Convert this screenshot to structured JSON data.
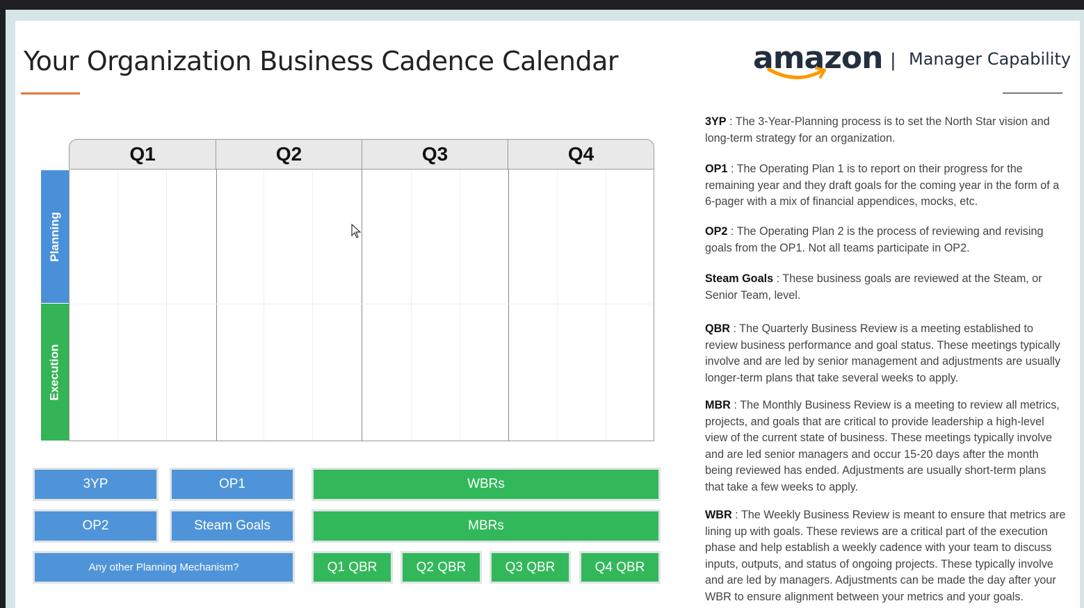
{
  "title": "Your Organization Business Cadence Calendar",
  "brand": {
    "logo_text": "amazon",
    "separator": "|",
    "tagline": "Manager Capability"
  },
  "calendar": {
    "quarters": [
      "Q1",
      "Q2",
      "Q3",
      "Q4"
    ],
    "rows": [
      "Planning",
      "Execution"
    ]
  },
  "legend_buttons": {
    "b3yp": "3YP",
    "op1": "OP1",
    "op2": "OP2",
    "steam": "Steam Goals",
    "other": "Any other Planning Mechanism?",
    "wbrs": "WBRs",
    "mbrs": "MBRs",
    "q1": "Q1 QBR",
    "q2": "Q2 QBR",
    "q3": "Q3 QBR",
    "q4": "Q4 QBR"
  },
  "definitions": [
    {
      "term": "3YP",
      "text": " : The 3-Year-Planning process is to set the North Star vision and long-term strategy for an organization."
    },
    {
      "term": "OP1",
      "text": " : The Operating Plan 1 is to report on their progress for the remaining year and they draft goals for the coming year in the form of a 6-pager with a mix of financial appendices, mocks, etc."
    },
    {
      "term": "OP2",
      "text": " : The Operating Plan 2 is the process of reviewing and revising goals from the OP1. Not all teams participate in OP2."
    },
    {
      "term": "Steam Goals",
      "text": " : These business goals are reviewed at the Steam, or Senior Team, level."
    },
    {
      "term": "QBR",
      "text": " : The Quarterly Business Review is a meeting established to review business performance and goal status. These meetings typically involve and are led by senior management and adjustments are usually longer-term plans that take several weeks to apply."
    },
    {
      "term": "MBR",
      "text": " : The Monthly Business Review is a meeting to review all metrics, projects, and goals that are critical to provide leadership a high-level view of the current state of business. These meetings typically involve and are led senior managers and occur 15-20 days after the month being reviewed has ended. Adjustments are usually short-term plans that take a few weeks to apply."
    },
    {
      "term": "WBR",
      "text": " : The Weekly Business Review is meant to ensure that metrics are lining up with goals. These reviews are a critical part of the execution phase and help establish a weekly cadence with your team to discuss inputs, outputs, and status of ongoing projects. These typically involve and are led by managers. Adjustments can be made the day after your WBR to ensure alignment between your metrics and your goals."
    }
  ],
  "colors": {
    "planning": "#4a90d9",
    "execution": "#34b454",
    "accent": "#e07a3a",
    "brand_smile": "#ff9900"
  }
}
